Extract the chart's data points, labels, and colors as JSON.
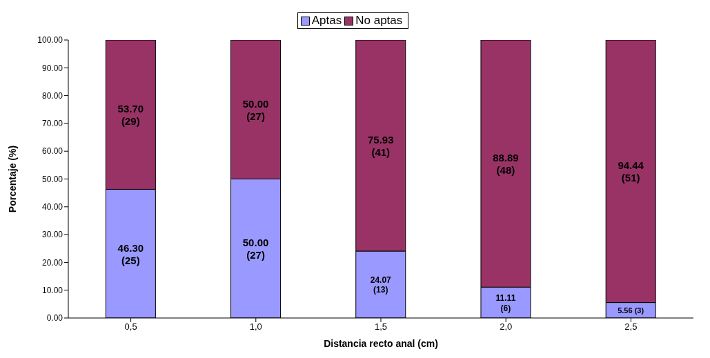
{
  "chart_data": {
    "type": "bar",
    "stacked": true,
    "xlabel": "Distancia recto anal (cm)",
    "ylabel": "Porcentaje (%)",
    "categories": [
      "0,5",
      "1,0",
      "1,5",
      "2,0",
      "2,5"
    ],
    "series": [
      {
        "name": "Aptas",
        "color": "#9999ff",
        "values": [
          46.3,
          50.0,
          24.07,
          11.11,
          5.56
        ],
        "value_labels": [
          "46.30 (25)",
          "50.00 (27)",
          "24.07 (13)",
          "11.11 (6)",
          "5.56 (3)"
        ]
      },
      {
        "name": "No aptas",
        "color": "#993366",
        "values": [
          53.7,
          50.0,
          75.93,
          88.89,
          94.44
        ],
        "value_labels": [
          "53.70 (29)",
          "50.00 (27)",
          "75.93 (41)",
          "88.89 (48)",
          "94.44 (51)"
        ]
      }
    ],
    "ylim": [
      0,
      100
    ],
    "yticks": [
      {
        "value": 0,
        "label": "0.00"
      },
      {
        "value": 10,
        "label": "10.00"
      },
      {
        "value": 20,
        "label": "20.00"
      },
      {
        "value": 30,
        "label": "30.00"
      },
      {
        "value": 40,
        "label": "40.00"
      },
      {
        "value": 50,
        "label": "50.00"
      },
      {
        "value": 60,
        "label": "60.00"
      },
      {
        "value": 70,
        "label": "70.00"
      },
      {
        "value": 80,
        "label": "80.00"
      },
      {
        "value": 90,
        "label": "90.00"
      },
      {
        "value": 100,
        "label": "100.00"
      }
    ],
    "legend": "top"
  }
}
